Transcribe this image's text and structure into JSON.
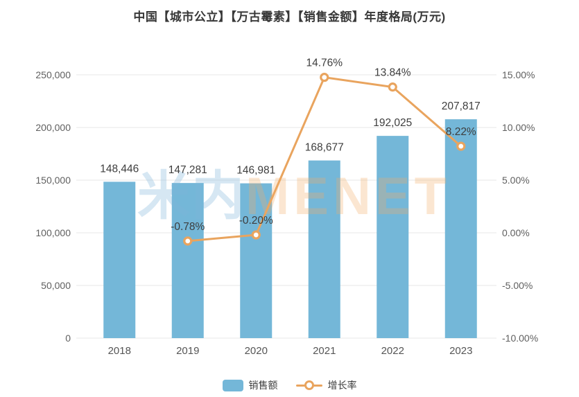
{
  "title": "中国【城市公立】【万古霉素】【销售金额】年度格局(万元)",
  "watermark": {
    "cn": "米内",
    "en": "MENET"
  },
  "legend": [
    {
      "label": "销售额",
      "type": "bar"
    },
    {
      "label": "增长率",
      "type": "line"
    }
  ],
  "colors": {
    "bar": "#74b7d8",
    "line": "#e9a45e",
    "marker_fill": "#ffffff",
    "grid": "#e7e7e7",
    "axis_text": "#5f5f5f",
    "label_text": "#3d3d3d",
    "title_text": "#383838"
  },
  "chart_data": {
    "type": "bar",
    "subtype": "bar+line-combo",
    "title": "中国【城市公立】【万古霉素】【销售金额】年度格局(万元)",
    "categories": [
      "2018",
      "2019",
      "2020",
      "2021",
      "2022",
      "2023"
    ],
    "series": [
      {
        "name": "销售额",
        "type": "bar",
        "axis": "left",
        "values": [
          148446,
          147281,
          146981,
          168677,
          192025,
          207817
        ],
        "labels": [
          "148,446",
          "147,281",
          "146,981",
          "168,677",
          "192,025",
          "207,817"
        ]
      },
      {
        "name": "增长率",
        "type": "line",
        "axis": "right",
        "values": [
          null,
          -0.78,
          -0.2,
          14.76,
          13.84,
          8.22
        ],
        "labels": [
          null,
          "-0.78%",
          "-0.20%",
          "14.76%",
          "13.84%",
          "8.22%"
        ]
      }
    ],
    "left_axis": {
      "min": 0,
      "max": 250000,
      "step": 50000,
      "tick_labels": [
        "0",
        "50,000",
        "100,000",
        "150,000",
        "200,000",
        "250,000"
      ]
    },
    "right_axis": {
      "min": -10,
      "max": 15,
      "step": 5,
      "tick_labels": [
        "-10.00%",
        "-5.00%",
        "0.00%",
        "5.00%",
        "10.00%",
        "15.00%"
      ]
    },
    "grid": true,
    "legend_position": "bottom"
  }
}
